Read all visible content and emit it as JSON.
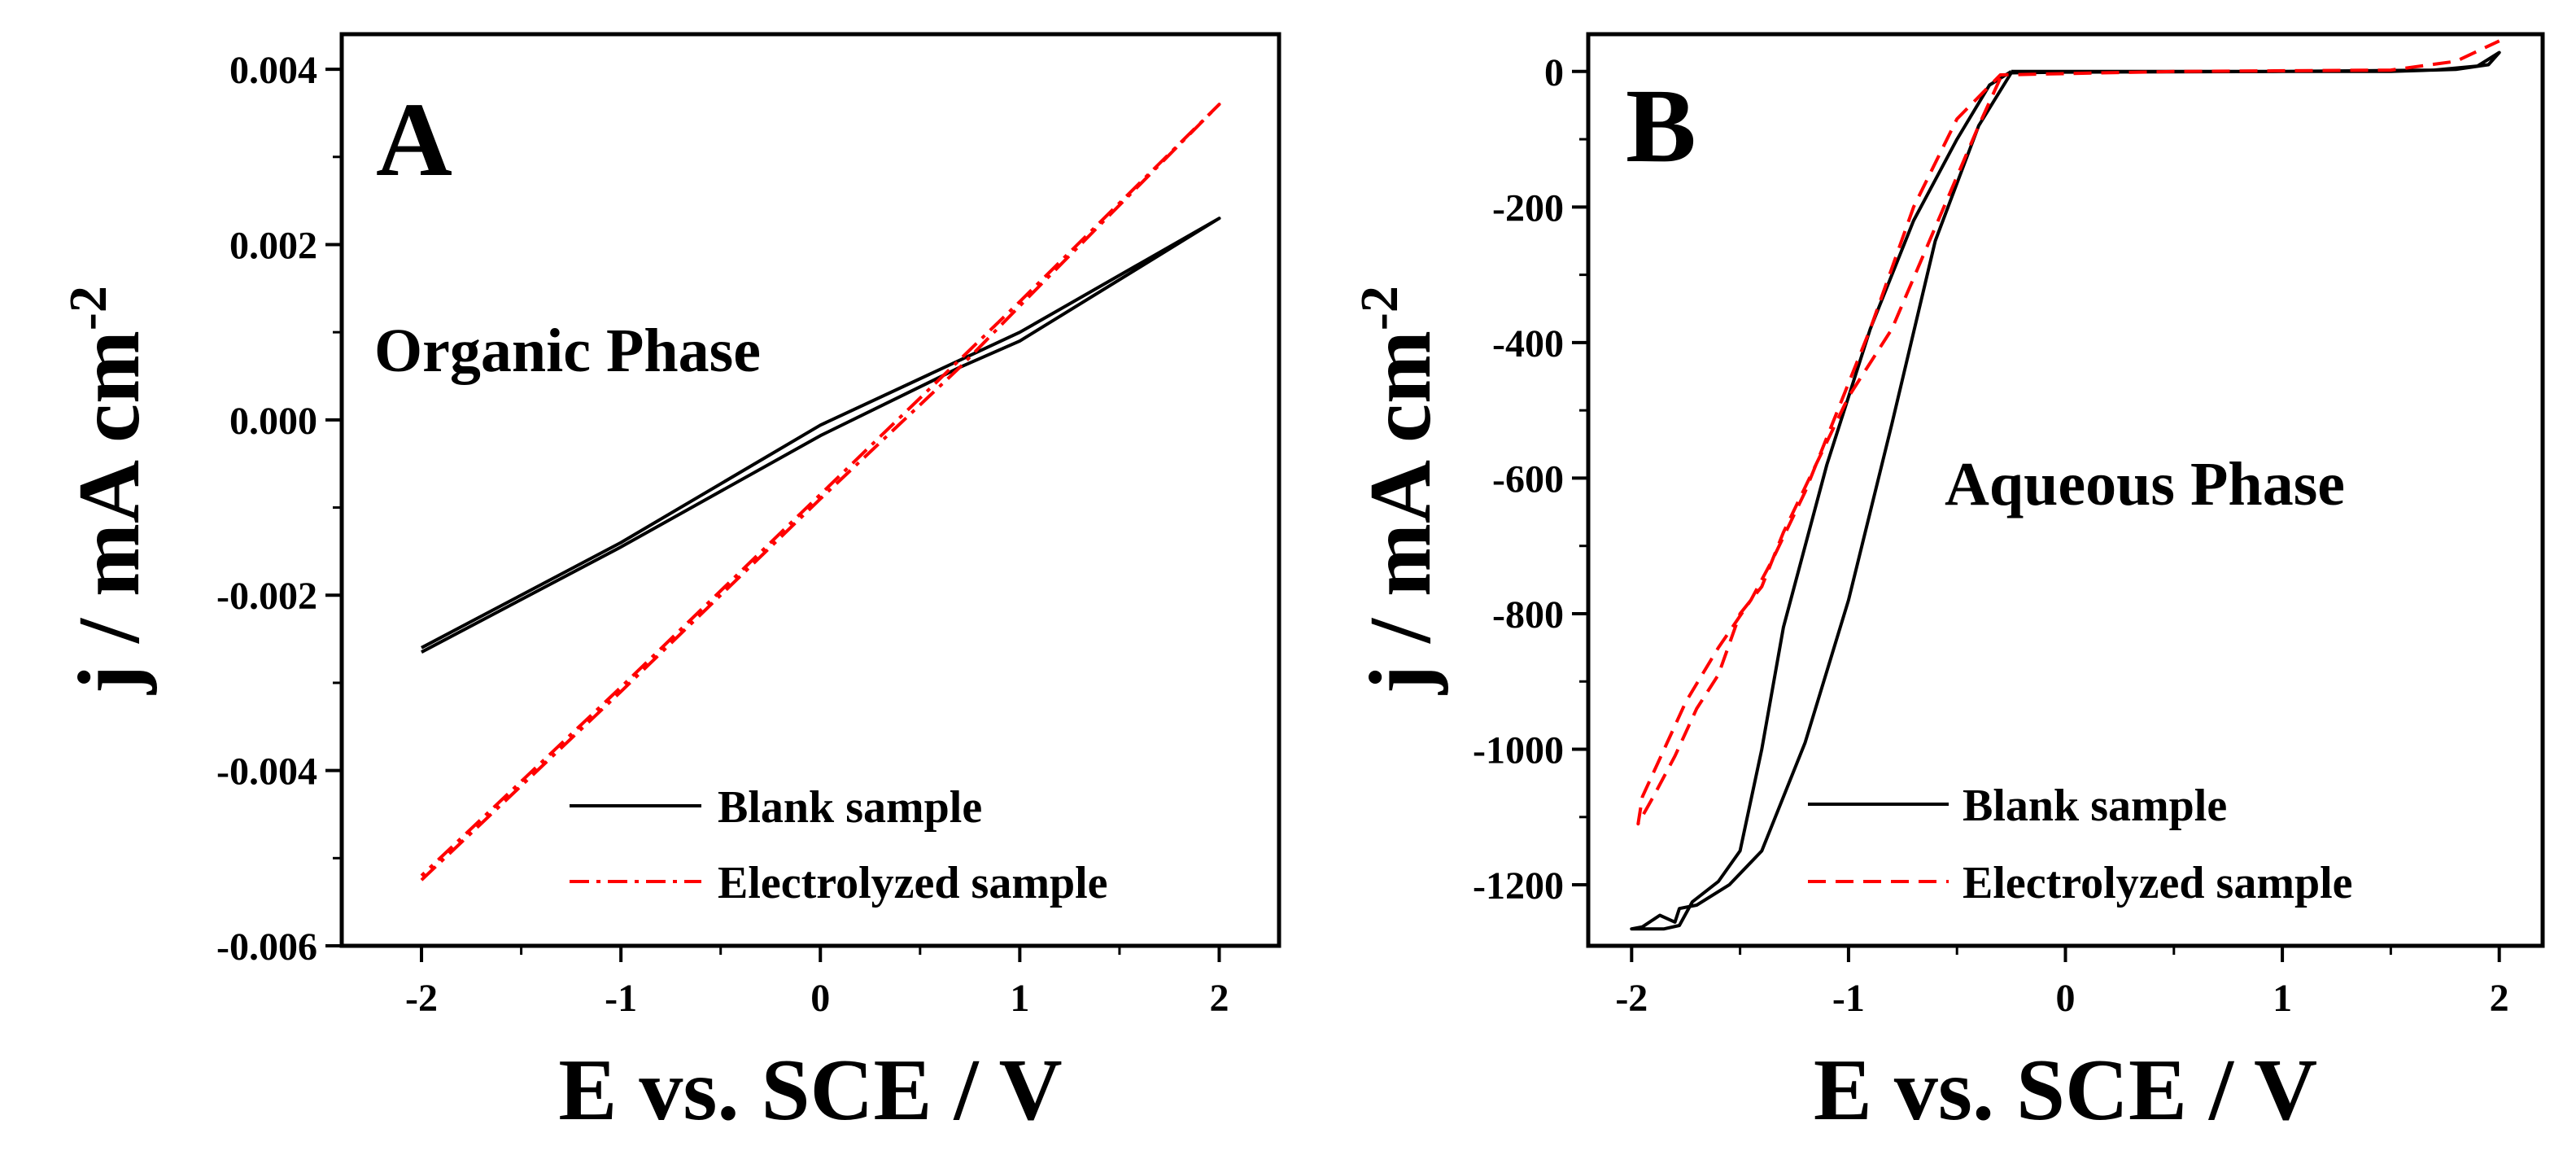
{
  "chart_data": [
    {
      "panel": "A",
      "type": "line",
      "panel_label": "A",
      "annotation": "Organic Phase",
      "xlabel": "E vs. SCE / V",
      "ylabel_main": "j / mA cm",
      "ylabel_exponent": "-2",
      "xlim": [
        -2.4,
        2.3
      ],
      "ylim": [
        -0.006,
        0.0044
      ],
      "xticks": [
        {
          "value": -2,
          "label": "-2"
        },
        {
          "value": -1,
          "label": "-1"
        },
        {
          "value": 0,
          "label": "0"
        },
        {
          "value": 1,
          "label": "1"
        },
        {
          "value": 2,
          "label": "2"
        }
      ],
      "yticks": [
        {
          "value": -0.006,
          "label": "-0.006"
        },
        {
          "value": -0.004,
          "label": "-0.004"
        },
        {
          "value": -0.002,
          "label": "-0.002"
        },
        {
          "value": 0.0,
          "label": "0.000"
        },
        {
          "value": 0.002,
          "label": "0.002"
        },
        {
          "value": 0.004,
          "label": "0.004"
        }
      ],
      "legend_position": "bottom-right",
      "series": [
        {
          "name": "Blank sample",
          "color": "#000000",
          "dash": "solid",
          "points": [
            [
              -2.0,
              -0.00265
            ],
            [
              -1.0,
              -0.00145
            ],
            [
              0.0,
              -0.00018
            ],
            [
              0.7,
              0.0006
            ],
            [
              1.0,
              0.0009
            ],
            [
              2.0,
              0.0023
            ],
            [
              1.0,
              0.001
            ],
            [
              0.0,
              -6e-05
            ],
            [
              -1.0,
              -0.0014
            ],
            [
              -2.0,
              -0.0026
            ]
          ]
        },
        {
          "name": "Electrolyzed sample",
          "color": "#ff0000",
          "dash": "dashdot",
          "points": [
            [
              -2.0,
              -0.00525
            ],
            [
              -1.0,
              -0.0031
            ],
            [
              0.0,
              -0.0009
            ],
            [
              0.7,
              0.0006
            ],
            [
              1.0,
              0.0013
            ],
            [
              2.0,
              0.0036
            ],
            [
              1.0,
              0.00135
            ],
            [
              0.0,
              -0.00085
            ],
            [
              -1.0,
              -0.00305
            ],
            [
              -2.0,
              -0.0052
            ]
          ]
        }
      ]
    },
    {
      "panel": "B",
      "type": "line",
      "panel_label": "B",
      "annotation": "Aqueous Phase",
      "xlabel": "E vs. SCE / V",
      "ylabel_main": "j / mA cm",
      "ylabel_exponent": "-2",
      "xlim": [
        -2.2,
        2.2
      ],
      "ylim": [
        -1290,
        55
      ],
      "xticks": [
        {
          "value": -2,
          "label": "-2"
        },
        {
          "value": -1,
          "label": "-1"
        },
        {
          "value": 0,
          "label": "0"
        },
        {
          "value": 1,
          "label": "1"
        },
        {
          "value": 2,
          "label": "2"
        }
      ],
      "yticks": [
        {
          "value": -1200,
          "label": "-1200"
        },
        {
          "value": -1000,
          "label": "-1000"
        },
        {
          "value": -800,
          "label": "-800"
        },
        {
          "value": -600,
          "label": "-600"
        },
        {
          "value": -400,
          "label": "-400"
        },
        {
          "value": -200,
          "label": "-200"
        },
        {
          "value": 0,
          "label": "0"
        }
      ],
      "legend_position": "bottom-right",
      "series": [
        {
          "name": "Blank sample",
          "color": "#000000",
          "dash": "solid",
          "points": [
            [
              -0.25,
              0
            ],
            [
              0.5,
              0
            ],
            [
              1.5,
              0
            ],
            [
              1.8,
              3
            ],
            [
              1.95,
              10
            ],
            [
              2.0,
              28
            ],
            [
              1.9,
              8
            ],
            [
              1.7,
              2
            ],
            [
              1.0,
              0
            ],
            [
              0.0,
              -1
            ],
            [
              -0.25,
              -2
            ],
            [
              -0.4,
              -80
            ],
            [
              -0.6,
              -250
            ],
            [
              -0.8,
              -520
            ],
            [
              -1.0,
              -780
            ],
            [
              -1.2,
              -990
            ],
            [
              -1.4,
              -1150
            ],
            [
              -1.55,
              -1200
            ],
            [
              -1.7,
              -1230
            ],
            [
              -1.78,
              -1235
            ],
            [
              -1.8,
              -1255
            ],
            [
              -1.87,
              -1245
            ],
            [
              -1.95,
              -1262
            ],
            [
              -2.0,
              -1265
            ],
            [
              -1.85,
              -1265
            ],
            [
              -1.78,
              -1260
            ],
            [
              -1.72,
              -1225
            ],
            [
              -1.6,
              -1195
            ],
            [
              -1.5,
              -1150
            ],
            [
              -1.4,
              -1000
            ],
            [
              -1.3,
              -820
            ],
            [
              -1.1,
              -580
            ],
            [
              -0.9,
              -380
            ],
            [
              -0.7,
              -220
            ],
            [
              -0.5,
              -100
            ],
            [
              -0.35,
              -20
            ],
            [
              -0.25,
              0
            ]
          ]
        },
        {
          "name": "Electrolyzed sample",
          "color": "#ff0000",
          "dash": "dashed",
          "points": [
            [
              -0.3,
              -10
            ],
            [
              -0.4,
              -80
            ],
            [
              -0.6,
              -230
            ],
            [
              -0.8,
              -380
            ],
            [
              -1.0,
              -480
            ],
            [
              -1.15,
              -580
            ],
            [
              -1.3,
              -680
            ],
            [
              -1.4,
              -760
            ],
            [
              -1.5,
              -800
            ],
            [
              -1.6,
              -890
            ],
            [
              -1.7,
              -940
            ],
            [
              -1.8,
              -1010
            ],
            [
              -1.9,
              -1070
            ],
            [
              -1.97,
              -1110
            ],
            [
              -1.95,
              -1070
            ],
            [
              -1.85,
              -1000
            ],
            [
              -1.75,
              -930
            ],
            [
              -1.6,
              -850
            ],
            [
              -1.45,
              -780
            ],
            [
              -1.35,
              -720
            ],
            [
              -1.2,
              -620
            ],
            [
              -1.05,
              -500
            ],
            [
              -0.9,
              -380
            ],
            [
              -0.7,
              -200
            ],
            [
              -0.5,
              -70
            ],
            [
              -0.3,
              -5
            ],
            [
              0.5,
              0
            ],
            [
              1.5,
              2
            ],
            [
              1.8,
              15
            ],
            [
              2.0,
              45
            ]
          ]
        }
      ]
    }
  ]
}
